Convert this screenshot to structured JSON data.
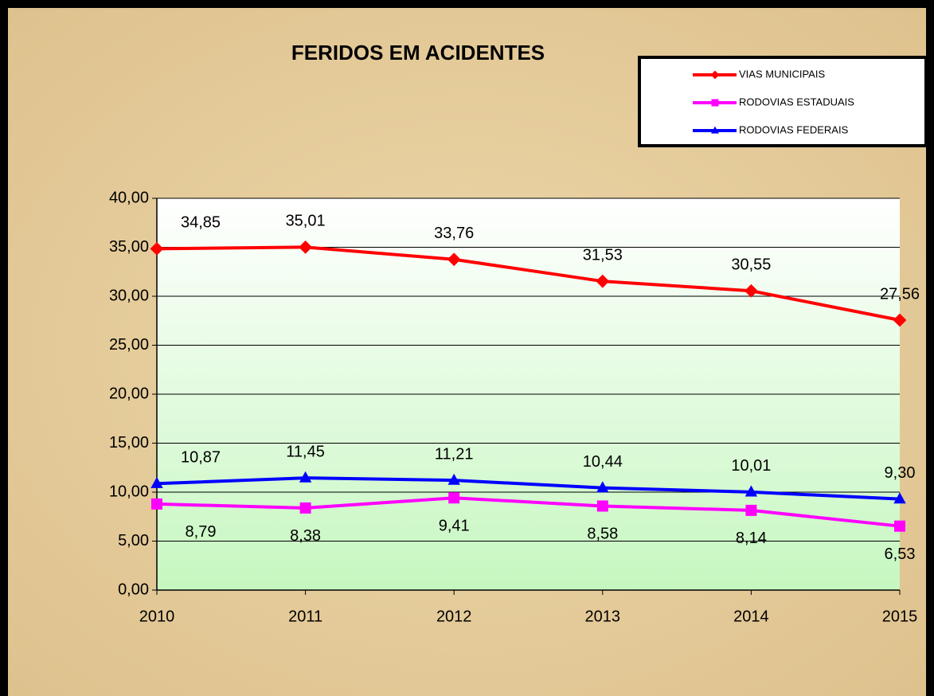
{
  "chart_data": {
    "type": "line",
    "title": "FERIDOS EM ACIDENTES",
    "categories": [
      "2010",
      "2011",
      "2012",
      "2013",
      "2014",
      "2015"
    ],
    "series": [
      {
        "name": "VIAS MUNICIPAIS",
        "color": "#ff0000",
        "marker": "diamond",
        "values": [
          34.85,
          35.01,
          33.76,
          31.53,
          30.55,
          27.56
        ],
        "value_labels": [
          "34,85",
          "35,01",
          "33,76",
          "31,53",
          "30,55",
          "27,56"
        ],
        "label_position": "above"
      },
      {
        "name": "RODOVIAS ESTADUAIS",
        "color": "#ff00ff",
        "marker": "square",
        "values": [
          8.79,
          8.38,
          9.41,
          8.58,
          8.14,
          6.53
        ],
        "value_labels": [
          "8,79",
          "8,38",
          "9,41",
          "8,58",
          "8,14",
          "6,53"
        ],
        "label_position": "below"
      },
      {
        "name": "RODOVIAS FEDERAIS",
        "color": "#0000ff",
        "marker": "triangle",
        "values": [
          10.87,
          11.45,
          11.21,
          10.44,
          10.01,
          9.3
        ],
        "value_labels": [
          "10,87",
          "11,45",
          "11,21",
          "10,44",
          "10,01",
          "9,30"
        ],
        "label_position": "above"
      }
    ],
    "ylim": [
      0,
      40
    ],
    "yticks": [
      {
        "value": 0,
        "label": "0,00"
      },
      {
        "value": 5,
        "label": "5,00"
      },
      {
        "value": 10,
        "label": "10,00"
      },
      {
        "value": 15,
        "label": "15,00"
      },
      {
        "value": 20,
        "label": "20,00"
      },
      {
        "value": 25,
        "label": "25,00"
      },
      {
        "value": 30,
        "label": "30,00"
      },
      {
        "value": 35,
        "label": "35,00"
      },
      {
        "value": 40,
        "label": "40,00"
      }
    ],
    "grid": true,
    "legend": "top-right"
  }
}
